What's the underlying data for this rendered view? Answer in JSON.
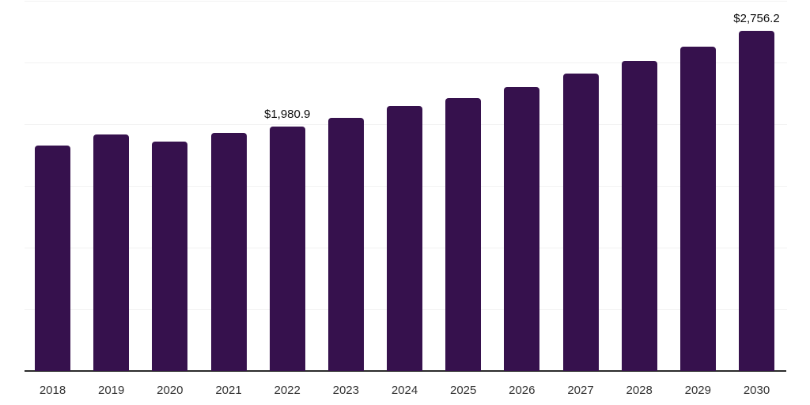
{
  "chart_data": {
    "type": "bar",
    "title": "",
    "xlabel": "",
    "ylabel": "",
    "categories": [
      "2018",
      "2019",
      "2020",
      "2021",
      "2022",
      "2023",
      "2024",
      "2025",
      "2026",
      "2027",
      "2028",
      "2029",
      "2030"
    ],
    "values": [
      1825,
      1917,
      1859,
      1928,
      1980.9,
      2051,
      2146,
      2210,
      2301,
      2409,
      2515,
      2631,
      2756.2
    ],
    "data_labels": [
      {
        "category": "2022",
        "text": "$1,980.9"
      },
      {
        "category": "2030",
        "text": "$2,756.2"
      }
    ],
    "ylim": [
      0,
      3000
    ],
    "gridline_step": 500,
    "grid": true,
    "legend_position": "none",
    "y_axis_tick_labels_visible": false,
    "colors": {
      "bar": "#36114D",
      "axis_line": "#2b2b2b",
      "gridline": "#f2f2f2",
      "tick_label": "#333333",
      "value_label": "#0d0d0d",
      "background": "#ffffff"
    }
  }
}
